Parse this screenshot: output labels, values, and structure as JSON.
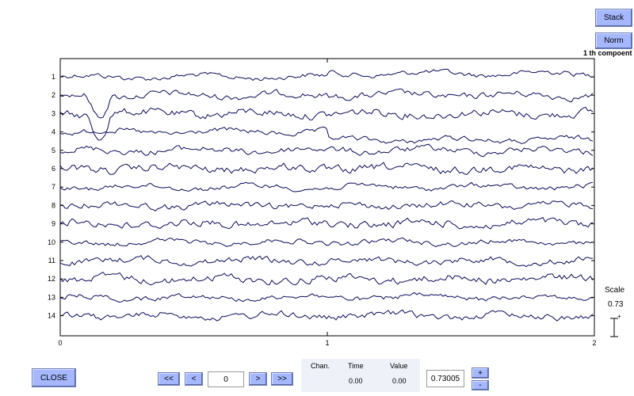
{
  "toolbar": {
    "stack_label": "Stack",
    "norm_label": "Norm",
    "component_title": "1 th compoent"
  },
  "plot": {
    "channel_labels": [
      "1",
      "2",
      "3",
      "4",
      "5",
      "6",
      "7",
      "8",
      "9",
      "10",
      "11",
      "12",
      "13",
      "14"
    ],
    "x_ticks": [
      "0",
      "1",
      "2"
    ],
    "trace_color": "#0a0a5a"
  },
  "scale": {
    "label": "Scale",
    "value": "0.73"
  },
  "bottom": {
    "close_label": "CLOSE",
    "first_label": "<<",
    "prev_label": "<",
    "page_value": "0",
    "next_label": ">",
    "last_label": ">>",
    "chan_header": "Chan.",
    "time_header": "Time",
    "value_header": "Value",
    "time_value": "0.00",
    "value_value": "0.00",
    "scale_value": "0.73005",
    "plus_label": "+",
    "minus_label": "-"
  }
}
